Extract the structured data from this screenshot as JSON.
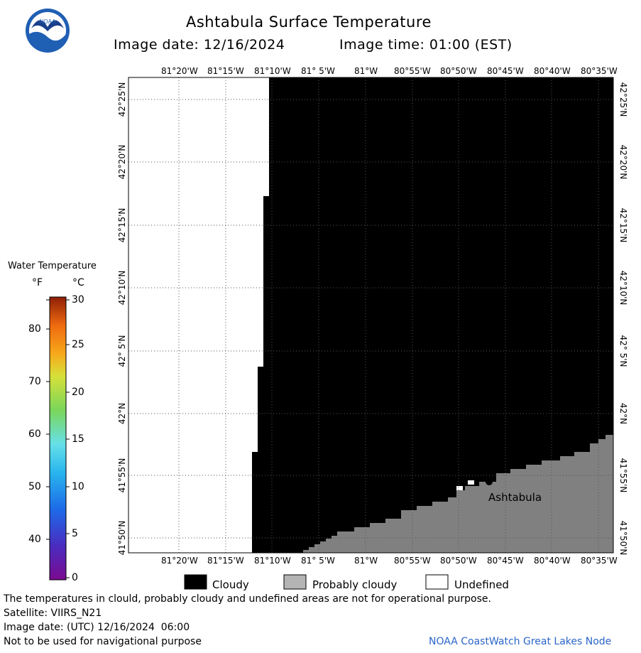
{
  "header": {
    "title": "Ashtabula Surface Temperature",
    "image_date": "Image date: 12/16/2024",
    "image_time": "Image time: 01:00 (EST)"
  },
  "logo": {
    "text": "NOAA"
  },
  "map": {
    "lon_ticks": [
      "81°20'W",
      "81°15'W",
      "81°10'W",
      "81° 5'W",
      "81°W",
      "80°55'W",
      "80°50'W",
      "80°45'W",
      "80°40'W",
      "80°35'W"
    ],
    "lat_ticks": [
      "42°25'N",
      "42°20'N",
      "42°15'N",
      "42°10'N",
      "42° 5'N",
      "42°N",
      "41°55'N",
      "41°50'N"
    ],
    "city_label": "Ashtabula",
    "colors": {
      "cloudy": "#000000",
      "probably_cloudy": "#808080",
      "undefined": "#ffffff",
      "grid": "#555555"
    }
  },
  "colorbar": {
    "title": "Water Temperature",
    "unit_f": "°F",
    "unit_c": "°C",
    "f_ticks": [
      "80",
      "70",
      "60",
      "50",
      "40"
    ],
    "c_ticks": [
      "30",
      "25",
      "20",
      "15",
      "10",
      "5",
      "0"
    ]
  },
  "legend": {
    "cloudy": "Cloudy",
    "probably_cloudy": "Probably cloudy",
    "undefined": "Undefined"
  },
  "footer": {
    "note": "The temperatures in clould, probably cloudy and undefined areas are not for operational purpose.",
    "satellite": "Satellite: VIIRS_N21",
    "utc_date": "Image date: (UTC) 12/16/2024  06:00",
    "nav_warning": "Not to be used for navigational purpose",
    "credit": "NOAA CoastWatch Great Lakes Node"
  }
}
